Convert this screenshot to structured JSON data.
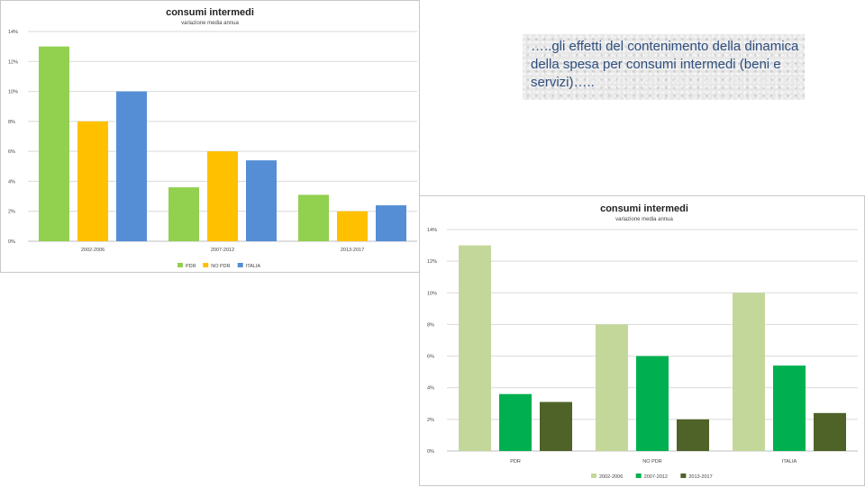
{
  "note": {
    "text": "…..gli effetti del contenimento della dinamica della spesa per consumi intermedi (beni e servizi)….."
  },
  "chart_data": [
    {
      "type": "bar",
      "title": "consumi intermedi",
      "subtitle": "variazione media annua",
      "categories": [
        "2002-2006",
        "2007-2012",
        "2013-2017"
      ],
      "series": [
        {
          "name": "PDR",
          "color": "#92d050",
          "values": [
            13.0,
            3.6,
            3.1
          ]
        },
        {
          "name": "NO PDR",
          "color": "#ffc000",
          "values": [
            8.0,
            6.0,
            2.0
          ]
        },
        {
          "name": "ITALIA",
          "color": "#558ed5",
          "values": [
            10.0,
            5.4,
            2.4
          ]
        }
      ],
      "yticks": [
        "0%",
        "2%",
        "4%",
        "6%",
        "8%",
        "10%",
        "12%",
        "14%"
      ],
      "ylim": [
        0,
        14
      ],
      "grid": true,
      "legend": "bottom",
      "xlabel": "",
      "ylabel": ""
    },
    {
      "type": "bar",
      "title": "consumi intermedi",
      "subtitle": "variazione media annua",
      "categories": [
        "PDR",
        "NO PDR",
        "ITALIA"
      ],
      "series": [
        {
          "name": "2002-2006",
          "color": "#c4d79b",
          "values": [
            13.0,
            8.0,
            10.0
          ]
        },
        {
          "name": "2007-2012",
          "color": "#00b050",
          "values": [
            3.6,
            6.0,
            5.4
          ]
        },
        {
          "name": "2013-2017",
          "color": "#4f6228",
          "values": [
            3.1,
            2.0,
            2.4
          ]
        }
      ],
      "yticks": [
        "0%",
        "2%",
        "4%",
        "6%",
        "8%",
        "10%",
        "12%",
        "14%"
      ],
      "ylim": [
        0,
        14
      ],
      "grid": true,
      "legend": "bottom",
      "xlabel": "",
      "ylabel": ""
    }
  ]
}
